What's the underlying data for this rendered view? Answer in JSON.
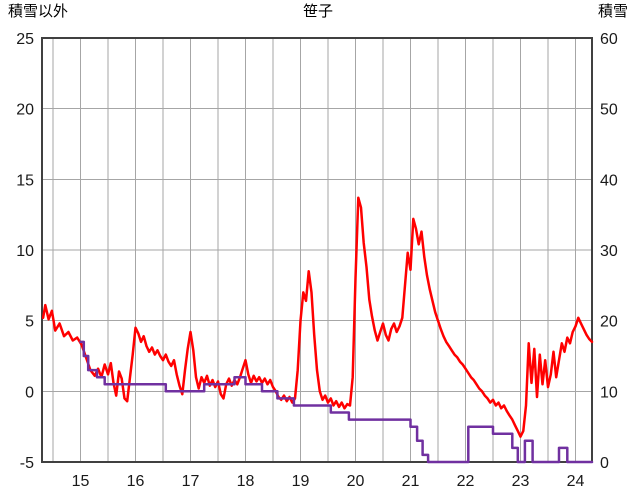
{
  "chart_data": {
    "type": "line",
    "title": "笹子",
    "left_axis": {
      "label": "積雪以外",
      "min": -5,
      "max": 25,
      "ticks": [
        25,
        20,
        15,
        10,
        5,
        0,
        -5
      ]
    },
    "right_axis": {
      "label": "積雪",
      "min": 0,
      "max": 60,
      "ticks": [
        60,
        50,
        40,
        30,
        20,
        10,
        0
      ]
    },
    "x_axis": {
      "min": 14.3,
      "max": 24.3,
      "ticks": [
        15,
        16,
        17,
        18,
        19,
        20,
        21,
        22,
        23,
        24
      ],
      "gridline_step": 0.5
    },
    "grid": true,
    "legend": "none",
    "colors": {
      "non_snow": "#ff0000",
      "snow": "#7030a0",
      "grid": "#a6a6a6",
      "border": "#404040"
    },
    "series": [
      {
        "name": "積雪以外",
        "axis": "left",
        "color_key": "non_snow",
        "points": [
          [
            14.32,
            5.2
          ],
          [
            14.36,
            6.1
          ],
          [
            14.42,
            5.1
          ],
          [
            14.48,
            5.7
          ],
          [
            14.54,
            4.3
          ],
          [
            14.62,
            4.8
          ],
          [
            14.7,
            3.9
          ],
          [
            14.78,
            4.2
          ],
          [
            14.86,
            3.6
          ],
          [
            14.94,
            3.8
          ],
          [
            15.02,
            3.3
          ],
          [
            15.1,
            2.4
          ],
          [
            15.18,
            1.5
          ],
          [
            15.26,
            1.1
          ],
          [
            15.32,
            1.6
          ],
          [
            15.38,
            1.0
          ],
          [
            15.44,
            1.9
          ],
          [
            15.5,
            1.2
          ],
          [
            15.55,
            2.0
          ],
          [
            15.6,
            0.6
          ],
          [
            15.65,
            -0.3
          ],
          [
            15.7,
            1.4
          ],
          [
            15.75,
            0.9
          ],
          [
            15.8,
            -0.5
          ],
          [
            15.85,
            -0.7
          ],
          [
            15.9,
            1.0
          ],
          [
            15.95,
            2.6
          ],
          [
            16.0,
            4.5
          ],
          [
            16.05,
            4.1
          ],
          [
            16.1,
            3.5
          ],
          [
            16.15,
            3.9
          ],
          [
            16.2,
            3.2
          ],
          [
            16.25,
            2.8
          ],
          [
            16.3,
            3.1
          ],
          [
            16.35,
            2.6
          ],
          [
            16.4,
            2.9
          ],
          [
            16.45,
            2.5
          ],
          [
            16.5,
            2.2
          ],
          [
            16.55,
            2.6
          ],
          [
            16.6,
            2.1
          ],
          [
            16.65,
            1.8
          ],
          [
            16.7,
            2.2
          ],
          [
            16.75,
            1.2
          ],
          [
            16.8,
            0.4
          ],
          [
            16.85,
            -0.2
          ],
          [
            16.9,
            1.5
          ],
          [
            16.95,
            3.0
          ],
          [
            17.0,
            4.2
          ],
          [
            17.05,
            2.9
          ],
          [
            17.1,
            1.0
          ],
          [
            17.15,
            0.2
          ],
          [
            17.2,
            1.0
          ],
          [
            17.25,
            0.6
          ],
          [
            17.3,
            1.1
          ],
          [
            17.35,
            0.4
          ],
          [
            17.4,
            0.8
          ],
          [
            17.45,
            0.3
          ],
          [
            17.5,
            0.7
          ],
          [
            17.55,
            -0.2
          ],
          [
            17.6,
            -0.5
          ],
          [
            17.65,
            0.5
          ],
          [
            17.7,
            0.9
          ],
          [
            17.75,
            0.4
          ],
          [
            17.8,
            0.8
          ],
          [
            17.85,
            0.5
          ],
          [
            17.9,
            1.0
          ],
          [
            17.95,
            1.6
          ],
          [
            18.0,
            2.2
          ],
          [
            18.05,
            1.2
          ],
          [
            18.1,
            0.6
          ],
          [
            18.15,
            1.1
          ],
          [
            18.2,
            0.7
          ],
          [
            18.25,
            1.0
          ],
          [
            18.3,
            0.6
          ],
          [
            18.35,
            0.9
          ],
          [
            18.4,
            0.5
          ],
          [
            18.45,
            0.8
          ],
          [
            18.5,
            0.3
          ],
          [
            18.55,
            0.0
          ],
          [
            18.6,
            -0.4
          ],
          [
            18.65,
            -0.6
          ],
          [
            18.7,
            -0.3
          ],
          [
            18.75,
            -0.7
          ],
          [
            18.8,
            -0.4
          ],
          [
            18.85,
            -0.8
          ],
          [
            18.9,
            -0.5
          ],
          [
            18.95,
            1.5
          ],
          [
            19.0,
            5.0
          ],
          [
            19.05,
            7.0
          ],
          [
            19.1,
            6.4
          ],
          [
            19.15,
            8.5
          ],
          [
            19.2,
            7.0
          ],
          [
            19.25,
            4.0
          ],
          [
            19.3,
            1.5
          ],
          [
            19.35,
            0.0
          ],
          [
            19.4,
            -0.6
          ],
          [
            19.45,
            -0.3
          ],
          [
            19.5,
            -0.8
          ],
          [
            19.55,
            -0.5
          ],
          [
            19.6,
            -1.0
          ],
          [
            19.65,
            -0.7
          ],
          [
            19.7,
            -1.1
          ],
          [
            19.75,
            -0.8
          ],
          [
            19.8,
            -1.2
          ],
          [
            19.85,
            -0.9
          ],
          [
            19.9,
            -1.0
          ],
          [
            19.95,
            1.0
          ],
          [
            20.0,
            8.0
          ],
          [
            20.05,
            13.7
          ],
          [
            20.1,
            13.0
          ],
          [
            20.15,
            10.5
          ],
          [
            20.2,
            8.8
          ],
          [
            20.25,
            6.5
          ],
          [
            20.3,
            5.3
          ],
          [
            20.35,
            4.3
          ],
          [
            20.4,
            3.6
          ],
          [
            20.45,
            4.2
          ],
          [
            20.5,
            4.8
          ],
          [
            20.55,
            4.0
          ],
          [
            20.6,
            3.6
          ],
          [
            20.65,
            4.4
          ],
          [
            20.7,
            4.8
          ],
          [
            20.75,
            4.2
          ],
          [
            20.8,
            4.6
          ],
          [
            20.85,
            5.2
          ],
          [
            20.9,
            7.5
          ],
          [
            20.95,
            9.8
          ],
          [
            21.0,
            8.6
          ],
          [
            21.05,
            12.2
          ],
          [
            21.1,
            11.5
          ],
          [
            21.15,
            10.4
          ],
          [
            21.2,
            11.3
          ],
          [
            21.25,
            9.5
          ],
          [
            21.3,
            8.2
          ],
          [
            21.35,
            7.2
          ],
          [
            21.4,
            6.4
          ],
          [
            21.45,
            5.6
          ],
          [
            21.5,
            5.0
          ],
          [
            21.55,
            4.4
          ],
          [
            21.6,
            3.9
          ],
          [
            21.65,
            3.5
          ],
          [
            21.7,
            3.2
          ],
          [
            21.75,
            2.9
          ],
          [
            21.8,
            2.6
          ],
          [
            21.85,
            2.4
          ],
          [
            21.9,
            2.1
          ],
          [
            21.95,
            1.9
          ],
          [
            22.0,
            1.6
          ],
          [
            22.05,
            1.3
          ],
          [
            22.1,
            1.0
          ],
          [
            22.15,
            0.8
          ],
          [
            22.2,
            0.5
          ],
          [
            22.25,
            0.2
          ],
          [
            22.3,
            0.0
          ],
          [
            22.35,
            -0.3
          ],
          [
            22.4,
            -0.5
          ],
          [
            22.45,
            -0.8
          ],
          [
            22.5,
            -0.6
          ],
          [
            22.55,
            -1.0
          ],
          [
            22.6,
            -0.8
          ],
          [
            22.65,
            -1.2
          ],
          [
            22.7,
            -1.0
          ],
          [
            22.75,
            -1.4
          ],
          [
            22.8,
            -1.7
          ],
          [
            22.85,
            -2.0
          ],
          [
            22.9,
            -2.4
          ],
          [
            22.95,
            -2.8
          ],
          [
            23.0,
            -3.2
          ],
          [
            23.05,
            -2.8
          ],
          [
            23.1,
            -1.0
          ],
          [
            23.15,
            3.4
          ],
          [
            23.2,
            0.6
          ],
          [
            23.25,
            3.0
          ],
          [
            23.3,
            -0.4
          ],
          [
            23.35,
            2.6
          ],
          [
            23.4,
            0.5
          ],
          [
            23.45,
            2.2
          ],
          [
            23.5,
            0.3
          ],
          [
            23.55,
            1.2
          ],
          [
            23.6,
            2.8
          ],
          [
            23.65,
            1.0
          ],
          [
            23.7,
            2.2
          ],
          [
            23.75,
            3.4
          ],
          [
            23.8,
            2.8
          ],
          [
            23.85,
            3.8
          ],
          [
            23.9,
            3.4
          ],
          [
            23.95,
            4.2
          ],
          [
            24.0,
            4.6
          ],
          [
            24.05,
            5.2
          ],
          [
            24.1,
            4.8
          ],
          [
            24.15,
            4.4
          ],
          [
            24.2,
            4.0
          ],
          [
            24.25,
            3.7
          ],
          [
            24.3,
            3.5
          ]
        ]
      },
      {
        "name": "積雪",
        "axis": "right",
        "color_key": "snow",
        "points": [
          [
            15.0,
            17
          ],
          [
            15.06,
            17
          ],
          [
            15.06,
            15
          ],
          [
            15.14,
            15
          ],
          [
            15.14,
            13
          ],
          [
            15.3,
            13
          ],
          [
            15.3,
            12
          ],
          [
            15.44,
            12
          ],
          [
            15.44,
            11
          ],
          [
            16.55,
            11
          ],
          [
            16.55,
            10
          ],
          [
            17.25,
            10
          ],
          [
            17.25,
            11
          ],
          [
            17.8,
            11
          ],
          [
            17.8,
            12
          ],
          [
            18.0,
            12
          ],
          [
            18.0,
            11
          ],
          [
            18.3,
            11
          ],
          [
            18.3,
            10
          ],
          [
            18.58,
            10
          ],
          [
            18.58,
            9
          ],
          [
            18.88,
            9
          ],
          [
            18.88,
            8
          ],
          [
            19.55,
            8
          ],
          [
            19.55,
            7
          ],
          [
            19.88,
            7
          ],
          [
            19.88,
            6
          ],
          [
            21.0,
            6
          ],
          [
            21.0,
            5
          ],
          [
            21.12,
            5
          ],
          [
            21.12,
            3
          ],
          [
            21.22,
            3
          ],
          [
            21.22,
            1
          ],
          [
            21.32,
            1
          ],
          [
            21.32,
            0
          ],
          [
            22.05,
            0
          ],
          [
            22.05,
            5
          ],
          [
            22.5,
            5
          ],
          [
            22.5,
            4
          ],
          [
            22.85,
            4
          ],
          [
            22.85,
            2
          ],
          [
            22.95,
            2
          ],
          [
            22.95,
            0
          ],
          [
            23.08,
            0
          ],
          [
            23.08,
            3
          ],
          [
            23.22,
            3
          ],
          [
            23.22,
            0
          ],
          [
            23.7,
            0
          ],
          [
            23.7,
            2
          ],
          [
            23.85,
            2
          ],
          [
            23.85,
            0
          ],
          [
            24.3,
            0
          ]
        ]
      }
    ]
  }
}
